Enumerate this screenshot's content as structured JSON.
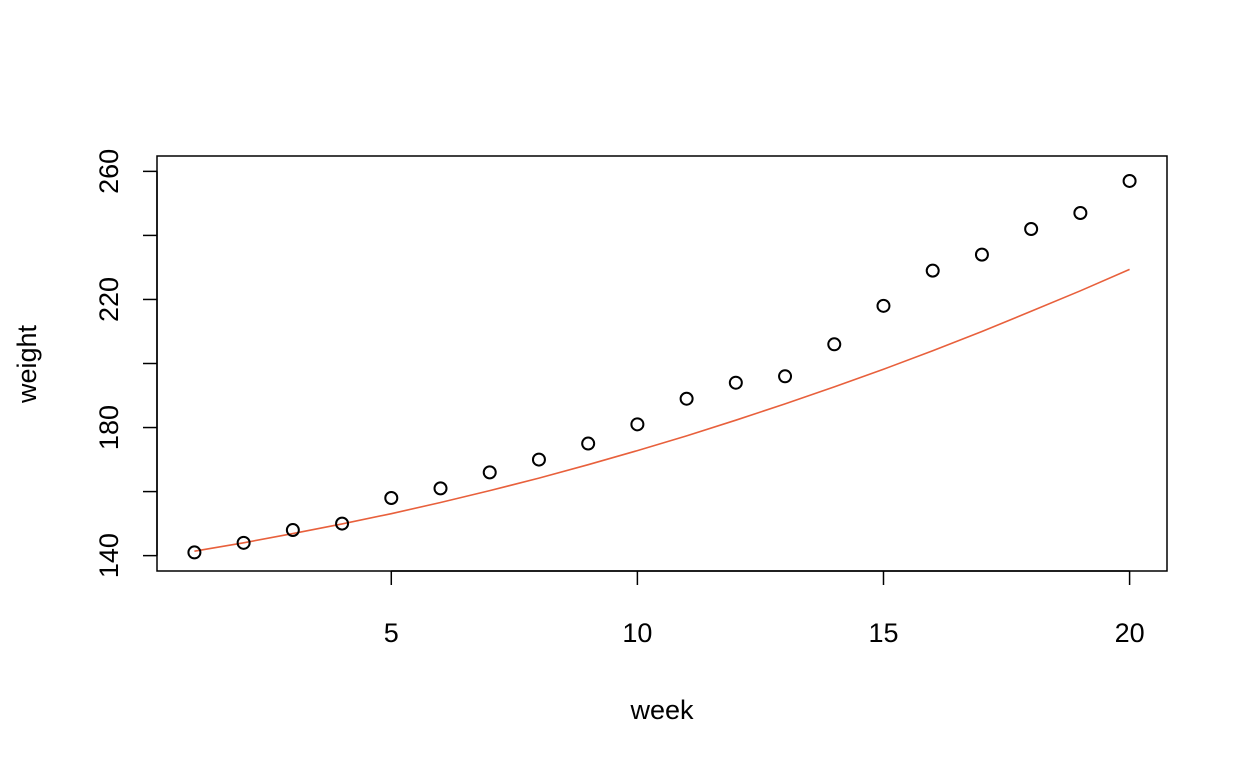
{
  "chart_data": {
    "type": "scatter",
    "title": "",
    "xlabel": "week",
    "ylabel": "weight",
    "xlim": [
      0.24,
      20.76
    ],
    "ylim": [
      135.2,
      264.8
    ],
    "x_ticks": [
      5,
      10,
      15,
      20
    ],
    "y_ticks": [
      140,
      180,
      220,
      260
    ],
    "y_minor_ticks": [
      160,
      200,
      240
    ],
    "grid": false,
    "legend": "none",
    "series": [
      {
        "kind": "points",
        "marker": "open-circle",
        "color": "#000000",
        "x": [
          1,
          2,
          3,
          4,
          5,
          6,
          7,
          8,
          9,
          10,
          11,
          12,
          13,
          14,
          15,
          16,
          17,
          18,
          19,
          20
        ],
        "y": [
          141,
          144,
          148,
          150,
          158,
          161,
          166,
          170,
          175,
          181,
          189,
          194,
          196,
          206,
          218,
          229,
          234,
          242,
          247,
          257
        ]
      },
      {
        "kind": "fitted-line",
        "color": "#e8603c",
        "x": [
          1,
          2,
          3,
          4,
          5,
          6,
          7,
          8,
          9,
          10,
          11,
          12,
          13,
          14,
          15,
          16,
          17,
          18,
          19,
          20
        ],
        "y": [
          141.4,
          144.0,
          146.9,
          149.9,
          153.1,
          156.6,
          160.3,
          164.2,
          168.4,
          172.8,
          177.4,
          182.3,
          187.4,
          192.7,
          198.2,
          204.0,
          210.0,
          216.3,
          222.7,
          229.4
        ]
      }
    ]
  }
}
